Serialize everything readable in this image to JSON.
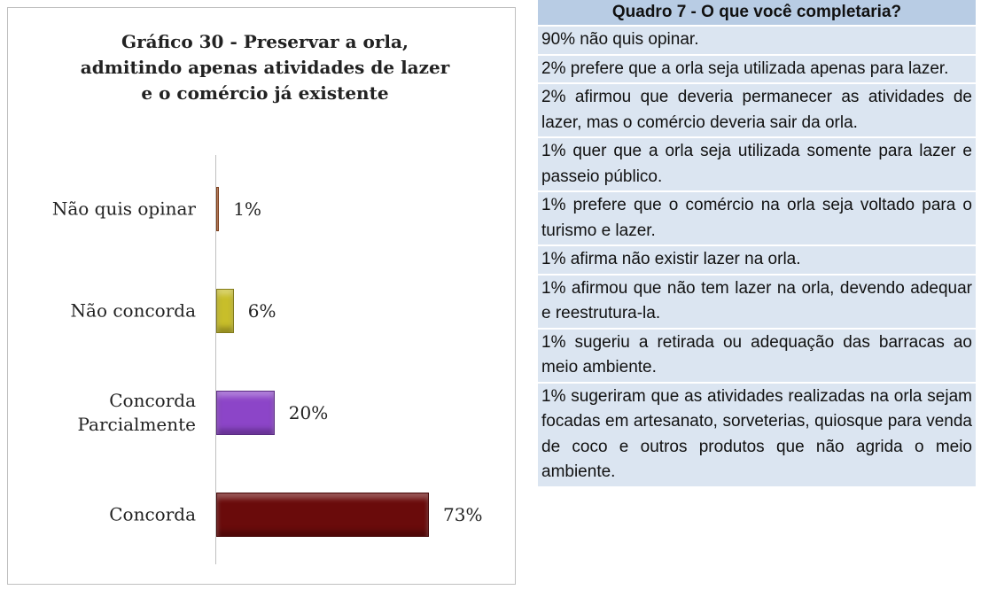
{
  "chart_data": {
    "type": "bar",
    "orientation": "horizontal",
    "title": "Gráfico 30 - Preservar a orla, admitindo apenas atividades de lazer e o comércio já existente",
    "categories": [
      "Não quis opinar",
      "Não concorda",
      "Concorda Parcialmente",
      "Concorda"
    ],
    "values": [
      1,
      6,
      20,
      73
    ],
    "value_labels": [
      "1%",
      "6%",
      "20%",
      "73%"
    ],
    "colors": [
      "#c0612b",
      "#c8be2a",
      "#8c45c8",
      "#6a0b0b"
    ]
  },
  "table": {
    "title": "Quadro 7 - O que você completaria?",
    "rows": [
      "90% não quis opinar.",
      "2% prefere que a orla seja utilizada apenas para lazer.",
      "2% afirmou que deveria permanecer as atividades de lazer, mas o comércio deveria sair da orla.",
      "1% quer que a orla seja utilizada somente para lazer e passeio público.",
      "1% prefere que o comércio na orla seja voltado para o turismo e lazer.",
      "1% afirma não existir lazer na orla.",
      "1% afirmou que não tem lazer na orla, devendo adequar e reestrutura-la.",
      "1% sugeriu a retirada ou adequação das barracas ao meio ambiente.",
      "1% sugeriram que as atividades realizadas na orla sejam focadas em artesanato, sorveterias, quiosque para venda de coco e outros produtos que não agrida o meio ambiente."
    ]
  }
}
